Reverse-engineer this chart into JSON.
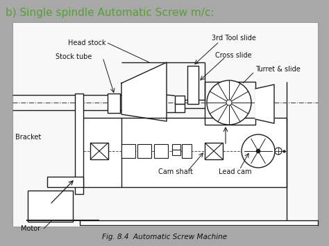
{
  "title": "b) Single spindle Automatic Screw m/c:",
  "title_color": "#5a9e3a",
  "title_fontsize": 11,
  "fig_caption": "Fig. 8.4  Automatic Screw Machine",
  "bg_outer": "#a8a8a8",
  "bg_inner": "#f8f8f8",
  "labels": {
    "head_stock": "Head stock",
    "stock_tube": "Stock tube",
    "bracket": "Bracket",
    "motor": "Motor",
    "cam_shaft": "Cam shaft",
    "lead_cam": "Lead cam",
    "third_tool_slide": "3rd Tool slide",
    "cross_slide": "Cross slide",
    "turret_slide": "Turret & slide"
  },
  "line_color": "#1a1a1a"
}
